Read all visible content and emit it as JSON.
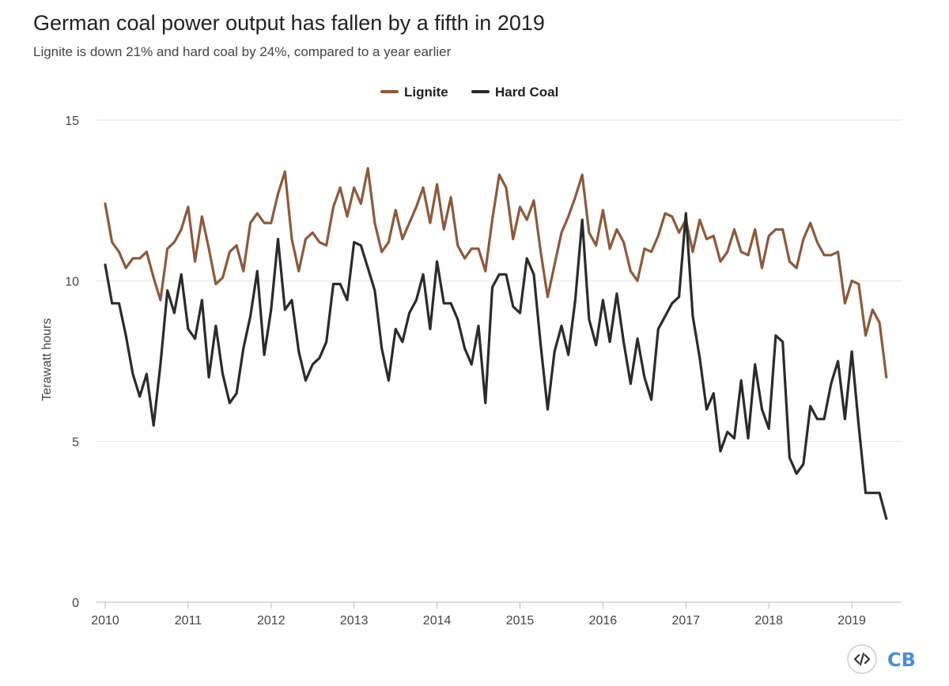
{
  "chart_data": {
    "type": "line",
    "title": "German coal power output has fallen by a fifth in 2019",
    "subtitle": "Lignite is down 21% and hard coal by 24%, compared to a year earlier",
    "ylabel": "Terawatt hours",
    "xlabel": "",
    "ylim": [
      0,
      15
    ],
    "xlim": [
      "2010-01",
      "2019-06"
    ],
    "yticks": [
      "0",
      "5",
      "10",
      "15"
    ],
    "xticks": [
      "2010",
      "2011",
      "2012",
      "2013",
      "2014",
      "2015",
      "2016",
      "2017",
      "2018",
      "2019"
    ],
    "grid": "horizontal",
    "legend": "top-center",
    "x": [
      "2010-01",
      "2010-02",
      "2010-03",
      "2010-04",
      "2010-05",
      "2010-06",
      "2010-07",
      "2010-08",
      "2010-09",
      "2010-10",
      "2010-11",
      "2010-12",
      "2011-01",
      "2011-02",
      "2011-03",
      "2011-04",
      "2011-05",
      "2011-06",
      "2011-07",
      "2011-08",
      "2011-09",
      "2011-10",
      "2011-11",
      "2011-12",
      "2012-01",
      "2012-02",
      "2012-03",
      "2012-04",
      "2012-05",
      "2012-06",
      "2012-07",
      "2012-08",
      "2012-09",
      "2012-10",
      "2012-11",
      "2012-12",
      "2013-01",
      "2013-02",
      "2013-03",
      "2013-04",
      "2013-05",
      "2013-06",
      "2013-07",
      "2013-08",
      "2013-09",
      "2013-10",
      "2013-11",
      "2013-12",
      "2014-01",
      "2014-02",
      "2014-03",
      "2014-04",
      "2014-05",
      "2014-06",
      "2014-07",
      "2014-08",
      "2014-09",
      "2014-10",
      "2014-11",
      "2014-12",
      "2015-01",
      "2015-02",
      "2015-03",
      "2015-04",
      "2015-05",
      "2015-06",
      "2015-07",
      "2015-08",
      "2015-09",
      "2015-10",
      "2015-11",
      "2015-12",
      "2016-01",
      "2016-02",
      "2016-03",
      "2016-04",
      "2016-05",
      "2016-06",
      "2016-07",
      "2016-08",
      "2016-09",
      "2016-10",
      "2016-11",
      "2016-12",
      "2017-01",
      "2017-02",
      "2017-03",
      "2017-04",
      "2017-05",
      "2017-06",
      "2017-07",
      "2017-08",
      "2017-09",
      "2017-10",
      "2017-11",
      "2017-12",
      "2018-01",
      "2018-02",
      "2018-03",
      "2018-04",
      "2018-05",
      "2018-06",
      "2018-07",
      "2018-08",
      "2018-09",
      "2018-10",
      "2018-11",
      "2018-12",
      "2019-01",
      "2019-02",
      "2019-03",
      "2019-04",
      "2019-05",
      "2019-06"
    ],
    "series": [
      {
        "name": "Lignite",
        "color": "#8b5a3c",
        "values": [
          12.4,
          11.2,
          10.9,
          10.4,
          10.7,
          10.7,
          10.9,
          10.1,
          9.4,
          11.0,
          11.2,
          11.6,
          12.3,
          10.6,
          12.0,
          11.0,
          9.9,
          10.1,
          10.9,
          11.1,
          10.3,
          11.8,
          12.1,
          11.8,
          11.8,
          12.7,
          13.4,
          11.3,
          10.3,
          11.3,
          11.5,
          11.2,
          11.1,
          12.3,
          12.9,
          12.0,
          12.9,
          12.4,
          13.5,
          11.8,
          10.9,
          11.2,
          12.2,
          11.3,
          11.8,
          12.3,
          12.9,
          11.8,
          13.0,
          11.6,
          12.6,
          11.1,
          10.7,
          11.0,
          11.0,
          10.3,
          11.9,
          13.3,
          12.9,
          11.3,
          12.3,
          11.9,
          12.5,
          10.9,
          9.5,
          10.5,
          11.5,
          12.0,
          12.6,
          13.3,
          11.5,
          11.1,
          12.2,
          11.0,
          11.6,
          11.2,
          10.3,
          10.0,
          11.0,
          10.9,
          11.4,
          12.1,
          12.0,
          11.5,
          11.9,
          10.9,
          11.9,
          11.3,
          11.4,
          10.6,
          10.9,
          11.6,
          10.9,
          10.8,
          11.6,
          10.4,
          11.4,
          11.6,
          11.6,
          10.6,
          10.4,
          11.3,
          11.8,
          11.2,
          10.8,
          10.8,
          10.9,
          9.3,
          10.0,
          9.9,
          8.3,
          9.1,
          8.7,
          7.0
        ]
      },
      {
        "name": "Hard Coal",
        "color": "#2b2b2b",
        "values": [
          10.5,
          9.3,
          9.3,
          8.3,
          7.1,
          6.4,
          7.1,
          5.5,
          7.4,
          9.7,
          9.0,
          10.2,
          8.5,
          8.2,
          9.4,
          7.0,
          8.6,
          7.1,
          6.2,
          6.5,
          7.9,
          8.9,
          10.3,
          7.7,
          9.1,
          11.3,
          9.1,
          9.4,
          7.8,
          6.9,
          7.4,
          7.6,
          8.1,
          9.9,
          9.9,
          9.4,
          11.2,
          11.1,
          10.4,
          9.7,
          7.9,
          6.9,
          8.5,
          8.1,
          9.0,
          9.4,
          10.2,
          8.5,
          10.6,
          9.3,
          9.3,
          8.8,
          7.9,
          7.4,
          8.6,
          6.2,
          9.8,
          10.2,
          10.2,
          9.2,
          9.0,
          10.7,
          10.2,
          8.0,
          6.0,
          7.8,
          8.6,
          7.7,
          9.4,
          11.9,
          8.8,
          8.0,
          9.4,
          8.1,
          9.6,
          8.1,
          6.8,
          8.2,
          7.0,
          6.3,
          8.5,
          8.9,
          9.3,
          9.5,
          12.1,
          8.9,
          7.6,
          6.0,
          6.5,
          4.7,
          5.3,
          5.1,
          6.9,
          5.1,
          7.4,
          6.0,
          5.4,
          8.3,
          8.1,
          4.5,
          4.0,
          4.3,
          6.1,
          5.7,
          5.7,
          6.8,
          7.5,
          5.7,
          7.8,
          5.5,
          3.4,
          3.4,
          3.4,
          2.6
        ]
      }
    ]
  }
}
